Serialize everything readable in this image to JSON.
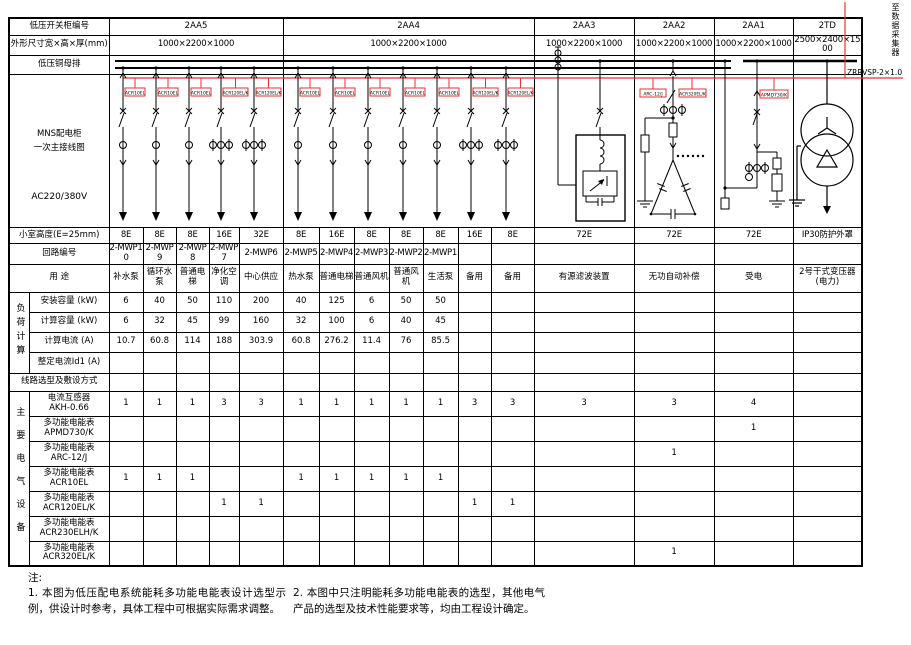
{
  "header": {
    "row1_label": "低压开关柜编号",
    "row2_label": "外形尺寸宽×高×厚(mm)",
    "row3_label": "低压铜母排",
    "diagram_label_line1": "MNS配电柜",
    "diagram_label_line2": "一次主接线图",
    "diagram_label_line3": "AC220/380V",
    "sections": [
      {
        "id": "2AA5",
        "dims": "1000×2200×1000",
        "span": 5
      },
      {
        "id": "2AA4",
        "dims": "1000×2200×1000",
        "span": 7
      },
      {
        "id": "2AA3",
        "dims": "1000×2200×1000",
        "span": 1
      },
      {
        "id": "2AA2",
        "dims": "1000×2200×1000",
        "span": 1
      },
      {
        "id": "2AA1",
        "dims": "1000×2200×1000",
        "span": 1
      },
      {
        "id": "2TD",
        "dims": "2500×2400×1500",
        "span": 1
      }
    ]
  },
  "rows": {
    "cell_height": {
      "label": "小室高度(E=25mm)",
      "values": [
        "8E",
        "8E",
        "8E",
        "16E",
        "32E",
        "8E",
        "16E",
        "8E",
        "8E",
        "8E",
        "16E",
        "8E",
        "72E",
        "72E",
        "72E",
        "IP30防护外罩"
      ]
    },
    "circuit_no": {
      "label": "回路编号",
      "values": [
        "2-MWP10",
        "2-MWP9",
        "2-MWP8",
        "2-MWP7",
        "2-MWP6",
        "2-MWP5",
        "2-MWP4",
        "2-MWP3",
        "2-MWP2",
        "2-MWP1",
        "",
        "",
        "",
        "",
        "",
        ""
      ]
    },
    "usage": {
      "label": "用 途",
      "values": [
        "补水泵",
        "循环水泵",
        "普通电梯",
        "净化空调",
        "中心供应",
        "热水泵",
        "普通电梯",
        "普通风机",
        "普通风机",
        "生活泵",
        "备用",
        "备用",
        "有源滤波装置",
        "无功自动补偿",
        "受电",
        "2号干式变压器(电力)"
      ]
    },
    "load_group_label": "负荷计算",
    "load_rows": [
      {
        "label": "安装容量 (kW)",
        "values": [
          "6",
          "40",
          "50",
          "110",
          "200",
          "40",
          "125",
          "6",
          "50",
          "50",
          "",
          "",
          "",
          "",
          "",
          ""
        ]
      },
      {
        "label": "计算容量 (kW)",
        "values": [
          "6",
          "32",
          "45",
          "99",
          "160",
          "32",
          "100",
          "6",
          "40",
          "45",
          "",
          "",
          "",
          "",
          "",
          ""
        ]
      },
      {
        "label": "计算电流 (A)",
        "values": [
          "10.7",
          "60.8",
          "114",
          "188",
          "303.9",
          "60.8",
          "276.2",
          "11.4",
          "76",
          "85.5",
          "",
          "",
          "",
          "",
          "",
          ""
        ]
      },
      {
        "label": "整定电流Id1 (A)",
        "values": [
          "",
          "",
          "",
          "",
          "",
          "",
          "",
          "",
          "",
          "",
          "",
          "",
          "",
          "",
          "",
          ""
        ]
      }
    ],
    "wiring_row_label": "线路选型及敷设方式",
    "equipment_group_label": "主要电气设备",
    "equipment_rows": [
      {
        "label1": "电流互感器",
        "label2": "AKH-0.66",
        "values": [
          "1",
          "1",
          "1",
          "3",
          "3",
          "1",
          "1",
          "1",
          "1",
          "1",
          "3",
          "3",
          "3",
          "3",
          "4",
          ""
        ]
      },
      {
        "label1": "多功能电能表",
        "label2": "APMD730/K",
        "values": [
          "",
          "",
          "",
          "",
          "",
          "",
          "",
          "",
          "",
          "",
          "",
          "",
          "",
          "",
          "1",
          ""
        ]
      },
      {
        "label1": "多功能电能表",
        "label2": "ARC-12/J",
        "values": [
          "",
          "",
          "",
          "",
          "",
          "",
          "",
          "",
          "",
          "",
          "",
          "",
          "",
          "1",
          "",
          ""
        ]
      },
      {
        "label1": "多功能电能表",
        "label2": "ACR10EL",
        "values": [
          "1",
          "1",
          "1",
          "",
          "",
          "1",
          "1",
          "1",
          "1",
          "1",
          "",
          "",
          "",
          "",
          "",
          ""
        ]
      },
      {
        "label1": "多功能电能表",
        "label2": "ACR120EL/K",
        "values": [
          "",
          "",
          "",
          "1",
          "1",
          "",
          "",
          "",
          "",
          "",
          "1",
          "1",
          "",
          "",
          "",
          ""
        ]
      },
      {
        "label1": "多功能电能表",
        "label2": "ACR230ELH/K",
        "values": [
          "",
          "",
          "",
          "",
          "",
          "",
          "",
          "",
          "",
          "",
          "",
          "",
          "",
          "",
          "",
          ""
        ]
      },
      {
        "label1": "多功能电能表",
        "label2": "ACR320EL/K",
        "values": [
          "",
          "",
          "",
          "",
          "",
          "",
          "",
          "",
          "",
          "",
          "",
          "",
          "",
          "1",
          "",
          ""
        ]
      }
    ]
  },
  "diagram": {
    "feeder_labels": [
      "ACR10EL",
      "ACR10EL",
      "ACR10EL",
      "ACR120EL/K",
      "ACR120EL/K",
      "ACR10EL",
      "ACR10EL",
      "ACR10EL",
      "ACR10EL",
      "ACR10EL",
      "ACR120EL/K",
      "ACR120EL/K"
    ],
    "feeder_ct_counts": [
      1,
      1,
      1,
      3,
      3,
      1,
      1,
      1,
      1,
      1,
      3,
      3
    ],
    "aa2_labels": [
      "ARC-12/J",
      "ACR320EL/K"
    ],
    "aa1_label": "APMD730/K",
    "cable_label": "ZRRVSP-2×1.0",
    "collector_label": "至数据采集器"
  },
  "notes": {
    "title": "注:",
    "note1": "1. 本图为低压配电系统能耗多功能电能表设计选型示例，供设计时参考，具体工程中可根据实际需求调整。",
    "note2": "2. 本图中只注明能耗多功能电能表的选型，其他电气产品的选型及技术性能要求等，均由工程设计确定。"
  },
  "colors": {
    "accent_red": "#e8312f",
    "line_black": "#000000"
  }
}
